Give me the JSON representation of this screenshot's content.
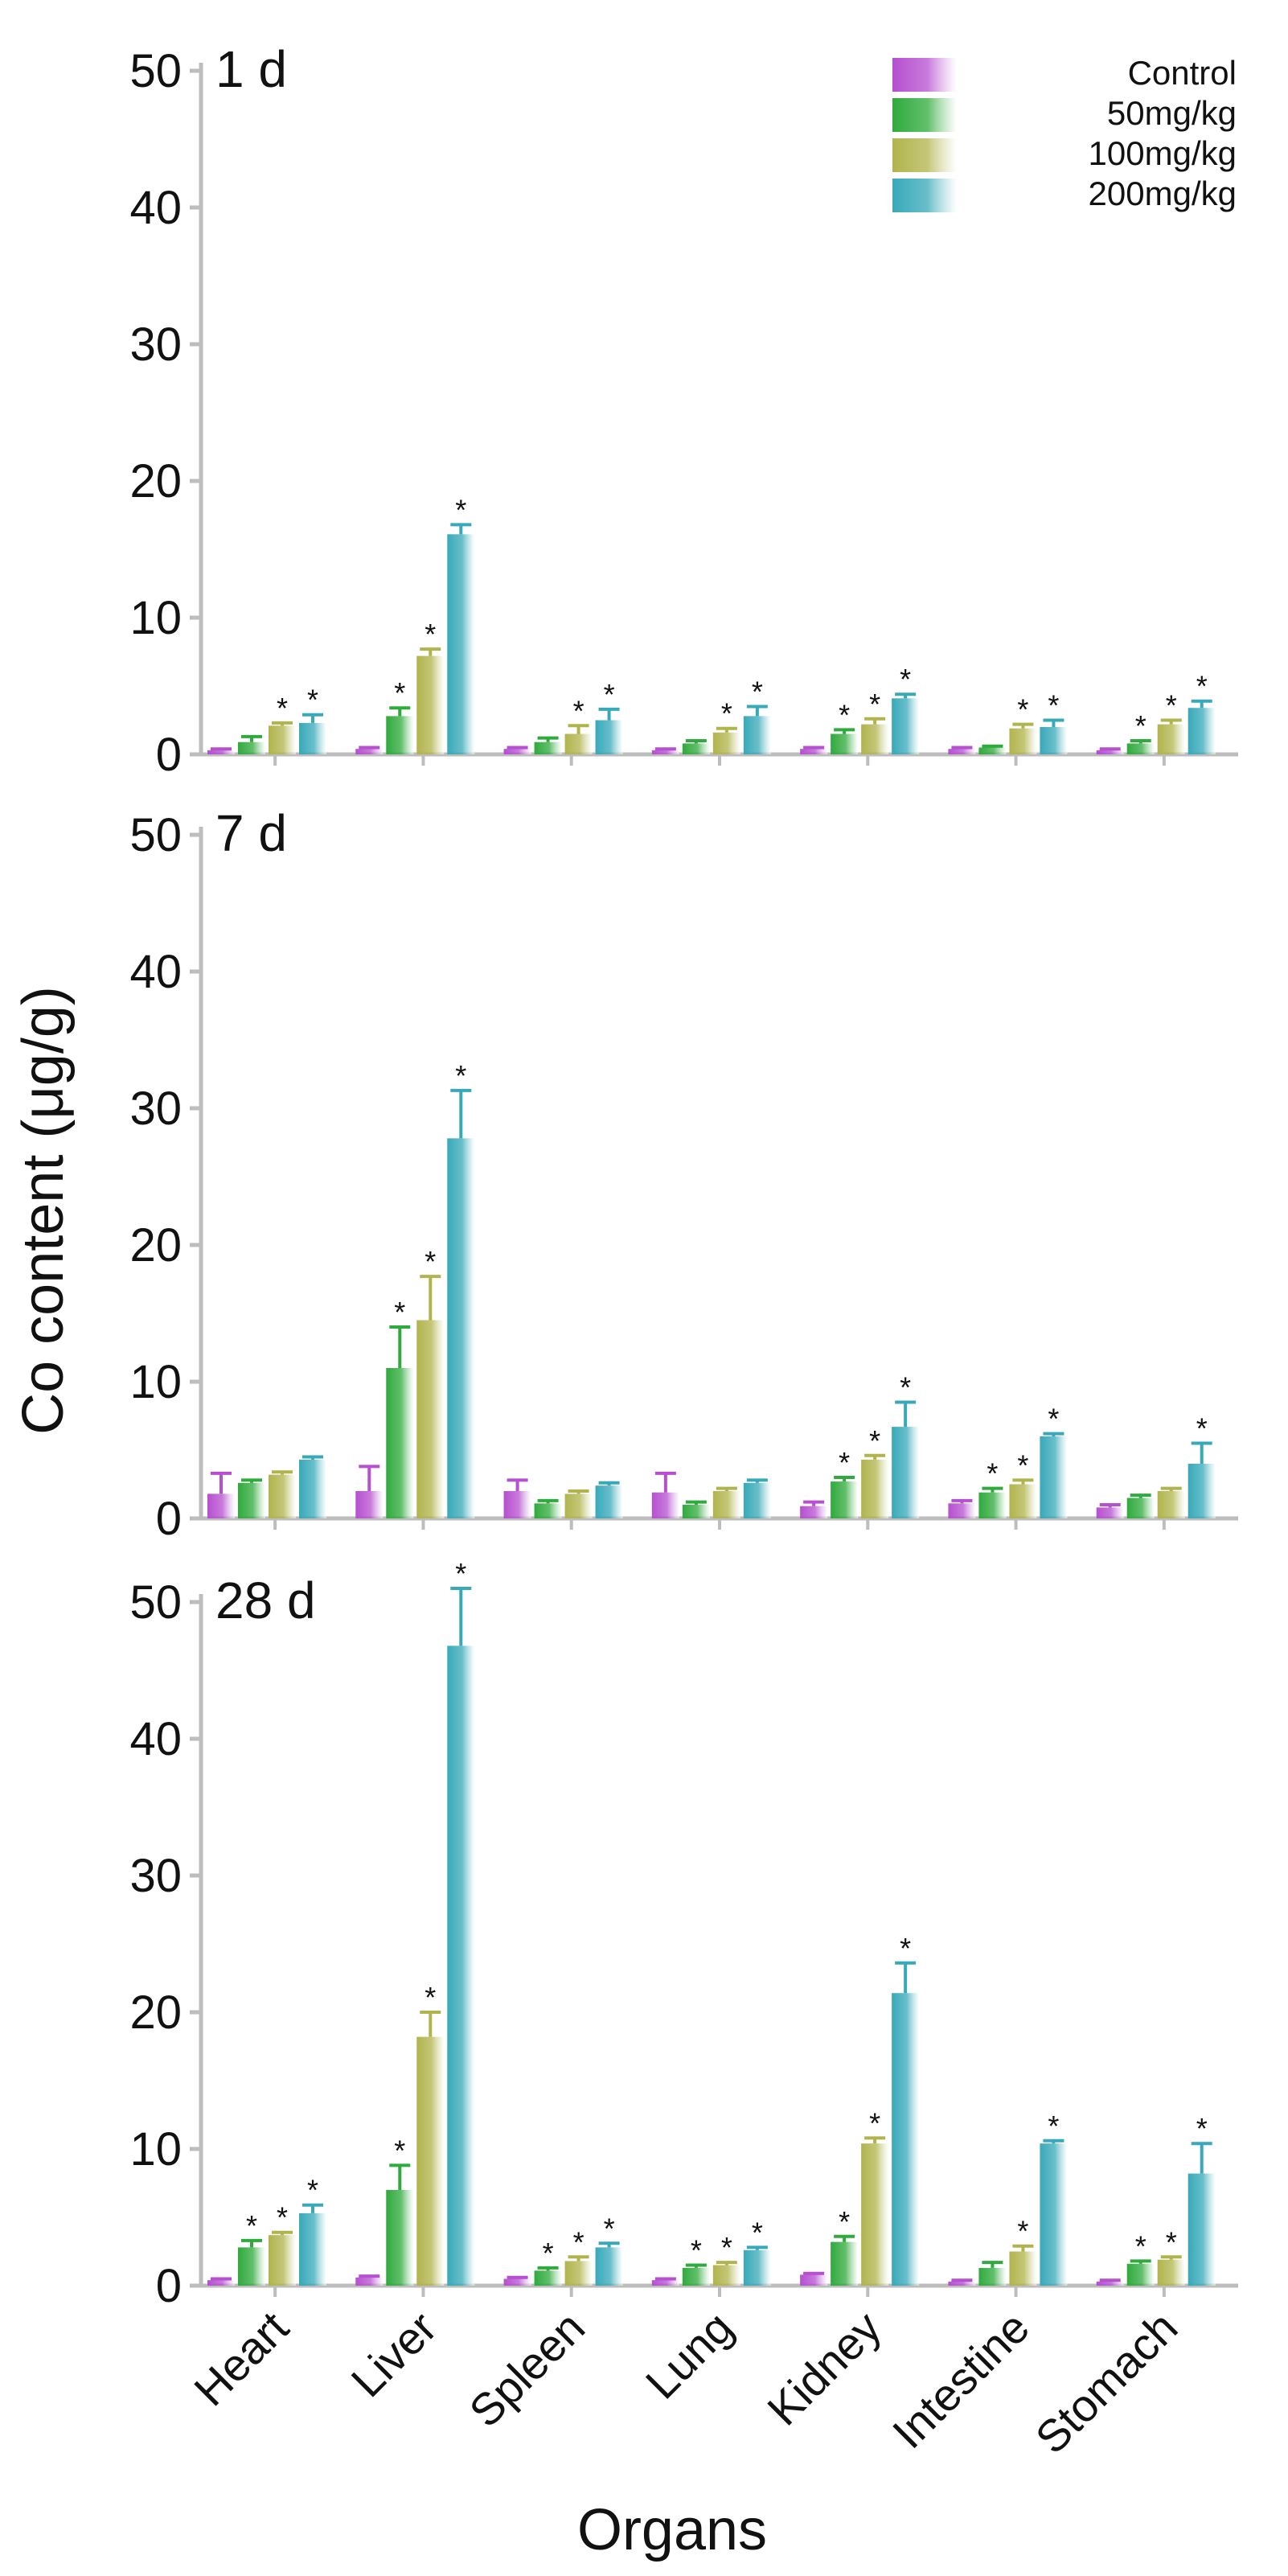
{
  "chart_data": {
    "type": "bar",
    "ylabel": "Co content (μg/g)",
    "xlabel": "Organs",
    "categories": [
      "Heart",
      "Liver",
      "Spleen",
      "Lung",
      "Kidney",
      "Intestine",
      "Stomach"
    ],
    "ylim": [
      0,
      50
    ],
    "yticks": [
      "0",
      "10",
      "20",
      "30",
      "40",
      "50"
    ],
    "legend": {
      "placement": "top-right",
      "entries": [
        "Control",
        "50mg/kg",
        "100mg/kg",
        "200mg/kg"
      ]
    },
    "colors": {
      "Control": "#b64fd0",
      "50mg/kg": "#2faa3c",
      "100mg/kg": "#b1b44c",
      "200mg/kg": "#38a9b9",
      "axis": "#bdbdbd"
    },
    "significance_marker": "*",
    "panels": [
      {
        "label": "1 d",
        "series": [
          {
            "name": "Control",
            "values": [
              0.3,
              0.4,
              0.4,
              0.3,
              0.4,
              0.4,
              0.3
            ],
            "errors": [
              0.1,
              0.1,
              0.1,
              0.1,
              0.1,
              0.1,
              0.1
            ],
            "significant": [
              false,
              false,
              false,
              false,
              false,
              false,
              false
            ]
          },
          {
            "name": "50mg/kg",
            "values": [
              0.9,
              2.8,
              0.9,
              0.8,
              1.5,
              0.5,
              0.8
            ],
            "errors": [
              0.4,
              0.6,
              0.3,
              0.2,
              0.3,
              0.1,
              0.2
            ],
            "significant": [
              false,
              true,
              false,
              false,
              true,
              false,
              true
            ]
          },
          {
            "name": "100mg/kg",
            "values": [
              2.1,
              7.2,
              1.5,
              1.6,
              2.2,
              1.9,
              2.2
            ],
            "errors": [
              0.2,
              0.5,
              0.6,
              0.3,
              0.4,
              0.3,
              0.3
            ],
            "significant": [
              true,
              true,
              true,
              true,
              true,
              true,
              true
            ]
          },
          {
            "name": "200mg/kg",
            "values": [
              2.3,
              16.1,
              2.5,
              2.8,
              4.1,
              2.0,
              3.4
            ],
            "errors": [
              0.6,
              0.7,
              0.8,
              0.7,
              0.3,
              0.5,
              0.5
            ],
            "significant": [
              true,
              true,
              true,
              true,
              true,
              true,
              true
            ]
          }
        ]
      },
      {
        "label": "7 d",
        "series": [
          {
            "name": "Control",
            "values": [
              1.8,
              2.0,
              2.0,
              1.9,
              0.9,
              1.1,
              0.8
            ],
            "errors": [
              1.5,
              1.8,
              0.8,
              1.4,
              0.3,
              0.2,
              0.2
            ],
            "significant": [
              false,
              false,
              false,
              false,
              false,
              false,
              false
            ]
          },
          {
            "name": "50mg/kg",
            "values": [
              2.6,
              11.0,
              1.1,
              1.0,
              2.7,
              1.9,
              1.5
            ],
            "errors": [
              0.2,
              3.0,
              0.2,
              0.2,
              0.3,
              0.3,
              0.2
            ],
            "significant": [
              false,
              true,
              false,
              false,
              true,
              true,
              false
            ]
          },
          {
            "name": "100mg/kg",
            "values": [
              3.2,
              14.5,
              1.8,
              2.0,
              4.3,
              2.5,
              2.0
            ],
            "errors": [
              0.2,
              3.2,
              0.2,
              0.2,
              0.3,
              0.3,
              0.2
            ],
            "significant": [
              false,
              true,
              false,
              false,
              true,
              true,
              false
            ]
          },
          {
            "name": "200mg/kg",
            "values": [
              4.3,
              27.8,
              2.4,
              2.6,
              6.7,
              6.0,
              4.0
            ],
            "errors": [
              0.2,
              3.5,
              0.2,
              0.2,
              1.8,
              0.2,
              1.5
            ],
            "significant": [
              false,
              true,
              false,
              false,
              true,
              true,
              true
            ]
          }
        ]
      },
      {
        "label": "28 d",
        "series": [
          {
            "name": "Control",
            "values": [
              0.4,
              0.6,
              0.5,
              0.4,
              0.8,
              0.3,
              0.3
            ],
            "errors": [
              0.1,
              0.1,
              0.1,
              0.1,
              0.1,
              0.1,
              0.1
            ],
            "significant": [
              false,
              false,
              false,
              false,
              false,
              false,
              false
            ]
          },
          {
            "name": "50mg/kg",
            "values": [
              2.8,
              7.0,
              1.1,
              1.3,
              3.2,
              1.3,
              1.6
            ],
            "errors": [
              0.5,
              1.8,
              0.2,
              0.2,
              0.4,
              0.4,
              0.2
            ],
            "significant": [
              true,
              true,
              true,
              true,
              true,
              false,
              true
            ]
          },
          {
            "name": "100mg/kg",
            "values": [
              3.7,
              18.2,
              1.8,
              1.5,
              10.4,
              2.5,
              1.9
            ],
            "errors": [
              0.2,
              1.8,
              0.3,
              0.2,
              0.4,
              0.4,
              0.2
            ],
            "significant": [
              true,
              true,
              true,
              true,
              true,
              true,
              true
            ]
          },
          {
            "name": "200mg/kg",
            "values": [
              5.3,
              46.8,
              2.8,
              2.6,
              21.4,
              10.4,
              8.2
            ],
            "errors": [
              0.6,
              4.2,
              0.3,
              0.2,
              2.2,
              0.2,
              2.2
            ],
            "significant": [
              true,
              true,
              true,
              true,
              true,
              true,
              true
            ]
          }
        ]
      }
    ]
  }
}
